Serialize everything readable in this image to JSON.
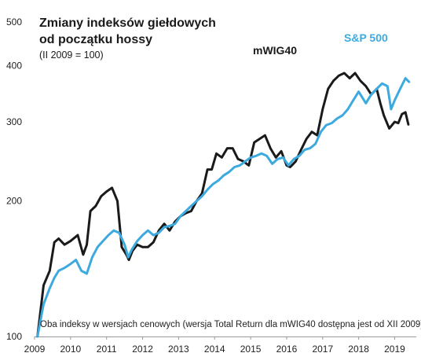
{
  "chart_data": {
    "type": "line",
    "title": "Zmiany indeksów giełdowych",
    "title_line2": "od początku hossy",
    "subtitle": "(II 2009 = 100)",
    "note": "Oba indeksy w wersjach cenowych (wersja Total Return dla mWIG40 dostępna jest od XII 2009)",
    "x_ticks": [
      "2009",
      "2010",
      "2011",
      "2012",
      "2013",
      "2014",
      "2015",
      "2016",
      "2017",
      "2018",
      "2019"
    ],
    "y_ticks": [
      100,
      200,
      300,
      400,
      500
    ],
    "y_scale": "log",
    "ylim": [
      100,
      500
    ],
    "xlim": [
      2009.0,
      2019.6
    ],
    "grid": false,
    "series": [
      {
        "name": "mWIG40",
        "color": "#1a1a1a",
        "x": [
          2009.08,
          2009.25,
          2009.42,
          2009.55,
          2009.67,
          2009.83,
          2010.0,
          2010.2,
          2010.35,
          2010.45,
          2010.55,
          2010.7,
          2010.85,
          2011.0,
          2011.15,
          2011.3,
          2011.42,
          2011.55,
          2011.62,
          2011.72,
          2011.85,
          2012.0,
          2012.15,
          2012.3,
          2012.45,
          2012.6,
          2012.75,
          2012.9,
          2013.05,
          2013.2,
          2013.35,
          2013.5,
          2013.65,
          2013.8,
          2013.92,
          2014.05,
          2014.2,
          2014.35,
          2014.5,
          2014.65,
          2014.8,
          2014.95,
          2015.1,
          2015.25,
          2015.4,
          2015.55,
          2015.7,
          2015.85,
          2016.0,
          2016.1,
          2016.25,
          2016.4,
          2016.55,
          2016.7,
          2016.85,
          2017.0,
          2017.15,
          2017.3,
          2017.45,
          2017.6,
          2017.75,
          2017.9,
          2018.05,
          2018.2,
          2018.35,
          2018.5,
          2018.6,
          2018.7,
          2018.85,
          2019.0,
          2019.1,
          2019.2,
          2019.3,
          2019.38
        ],
        "values": [
          100,
          130,
          140,
          162,
          165,
          160,
          163,
          168,
          152,
          160,
          190,
          195,
          205,
          210,
          214,
          200,
          158,
          152,
          148,
          155,
          160,
          158,
          158,
          162,
          172,
          178,
          172,
          180,
          185,
          188,
          190,
          200,
          208,
          235,
          235,
          255,
          250,
          262,
          262,
          248,
          245,
          240,
          270,
          275,
          280,
          262,
          250,
          258,
          240,
          238,
          245,
          260,
          275,
          285,
          280,
          320,
          355,
          370,
          380,
          385,
          375,
          385,
          370,
          360,
          345,
          355,
          330,
          310,
          290,
          300,
          298,
          312,
          315,
          296
        ]
      },
      {
        "name": "S&P 500",
        "color": "#3daadf",
        "x": [
          2009.08,
          2009.25,
          2009.42,
          2009.55,
          2009.67,
          2009.83,
          2010.0,
          2010.15,
          2010.3,
          2010.45,
          2010.6,
          2010.75,
          2010.9,
          2011.05,
          2011.2,
          2011.35,
          2011.5,
          2011.6,
          2011.7,
          2011.85,
          2012.0,
          2012.15,
          2012.3,
          2012.45,
          2012.6,
          2012.75,
          2012.9,
          2013.05,
          2013.2,
          2013.35,
          2013.5,
          2013.65,
          2013.8,
          2013.95,
          2014.1,
          2014.25,
          2014.4,
          2014.55,
          2014.7,
          2014.85,
          2015.0,
          2015.15,
          2015.3,
          2015.45,
          2015.6,
          2015.75,
          2015.9,
          2016.05,
          2016.2,
          2016.35,
          2016.5,
          2016.65,
          2016.8,
          2016.95,
          2017.1,
          2017.25,
          2017.4,
          2017.55,
          2017.7,
          2017.85,
          2018.0,
          2018.1,
          2018.2,
          2018.35,
          2018.5,
          2018.65,
          2018.8,
          2018.9,
          2019.0,
          2019.15,
          2019.3,
          2019.4
        ],
        "values": [
          100,
          118,
          128,
          135,
          140,
          142,
          145,
          148,
          140,
          138,
          150,
          158,
          163,
          168,
          172,
          170,
          160,
          150,
          156,
          163,
          168,
          172,
          168,
          170,
          175,
          176,
          178,
          185,
          190,
          195,
          200,
          205,
          212,
          218,
          222,
          228,
          232,
          238,
          240,
          245,
          250,
          252,
          255,
          252,
          242,
          248,
          250,
          240,
          248,
          252,
          260,
          262,
          268,
          285,
          295,
          298,
          305,
          310,
          320,
          335,
          350,
          340,
          330,
          345,
          355,
          365,
          360,
          320,
          335,
          355,
          375,
          368
        ]
      }
    ]
  }
}
